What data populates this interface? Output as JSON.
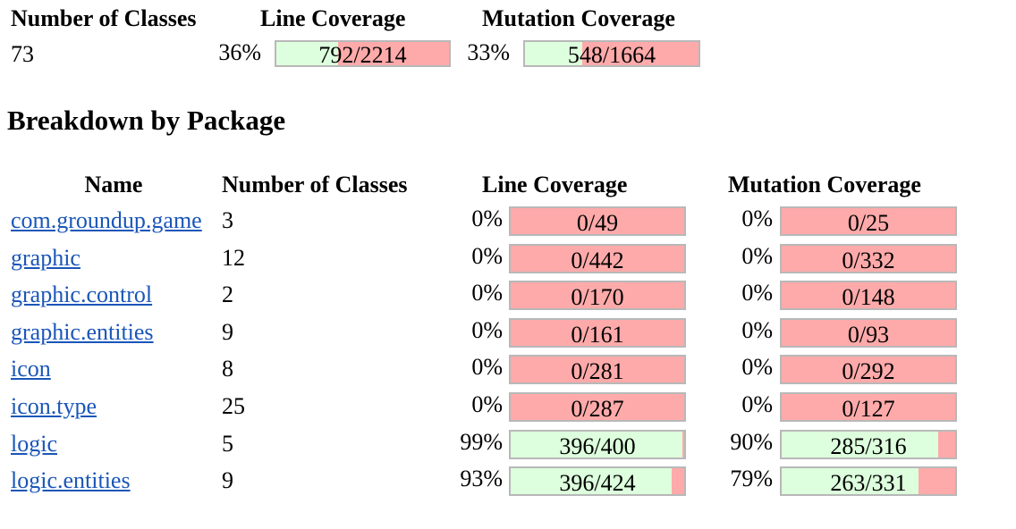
{
  "summary": {
    "headers": [
      "Number of Classes",
      "Line Coverage",
      "Mutation Coverage"
    ],
    "classes": "73",
    "line": {
      "percent": "36%",
      "label": "792/2214",
      "fraction": 0.36
    },
    "mutation": {
      "percent": "33%",
      "label": "548/1664",
      "fraction": 0.33
    }
  },
  "breakdown_title": "Breakdown by Package",
  "table": {
    "headers": [
      "Name",
      "Number of Classes",
      "Line Coverage",
      "Mutation Coverage"
    ],
    "rows": [
      {
        "name": "com.groundup.game",
        "classes": "3",
        "line_percent": "0%",
        "line_label": "0/49",
        "line_fraction": 0.0,
        "mut_percent": "0%",
        "mut_label": "0/25",
        "mut_fraction": 0.0
      },
      {
        "name": "graphic",
        "classes": "12",
        "line_percent": "0%",
        "line_label": "0/442",
        "line_fraction": 0.0,
        "mut_percent": "0%",
        "mut_label": "0/332",
        "mut_fraction": 0.0
      },
      {
        "name": "graphic.control",
        "classes": "2",
        "line_percent": "0%",
        "line_label": "0/170",
        "line_fraction": 0.0,
        "mut_percent": "0%",
        "mut_label": "0/148",
        "mut_fraction": 0.0
      },
      {
        "name": "graphic.entities",
        "classes": "9",
        "line_percent": "0%",
        "line_label": "0/161",
        "line_fraction": 0.0,
        "mut_percent": "0%",
        "mut_label": "0/93",
        "mut_fraction": 0.0
      },
      {
        "name": "icon",
        "classes": "8",
        "line_percent": "0%",
        "line_label": "0/281",
        "line_fraction": 0.0,
        "mut_percent": "0%",
        "mut_label": "0/292",
        "mut_fraction": 0.0
      },
      {
        "name": "icon.type",
        "classes": "25",
        "line_percent": "0%",
        "line_label": "0/287",
        "line_fraction": 0.0,
        "mut_percent": "0%",
        "mut_label": "0/127",
        "mut_fraction": 0.0
      },
      {
        "name": "logic",
        "classes": "5",
        "line_percent": "99%",
        "line_label": "396/400",
        "line_fraction": 0.99,
        "mut_percent": "90%",
        "mut_label": "285/316",
        "mut_fraction": 0.9
      },
      {
        "name": "logic.entities",
        "classes": "9",
        "line_percent": "93%",
        "line_label": "396/424",
        "line_fraction": 0.93,
        "mut_percent": "79%",
        "mut_label": "263/331",
        "mut_fraction": 0.79
      }
    ]
  },
  "colors": {
    "covered": "#ddffdd",
    "uncovered": "#ffaaaa",
    "link": "#1a56b8",
    "bar_border": "#b8b8b8"
  }
}
